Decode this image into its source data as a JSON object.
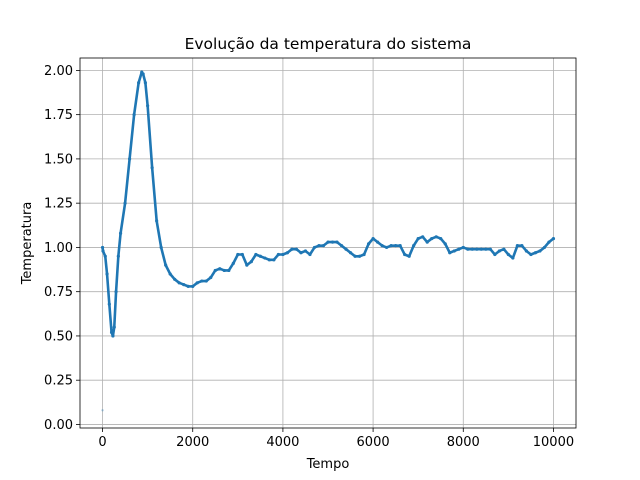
{
  "chart_data": {
    "type": "scatter",
    "title": "Evolução da temperatura do sistema",
    "xlabel": "Tempo",
    "ylabel": "Temperatura",
    "xlim": [
      -500,
      10500
    ],
    "ylim": [
      -0.02,
      2.07
    ],
    "grid": true,
    "xticks": [
      0,
      2000,
      4000,
      6000,
      8000,
      10000
    ],
    "xtick_labels": [
      "0",
      "2000",
      "4000",
      "6000",
      "8000",
      "10000"
    ],
    "yticks": [
      0.0,
      0.25,
      0.5,
      0.75,
      1.0,
      1.25,
      1.5,
      1.75,
      2.0
    ],
    "ytick_labels": [
      "0.00",
      "0.25",
      "0.50",
      "0.75",
      "1.00",
      "1.25",
      "1.50",
      "1.75",
      "2.00"
    ],
    "color": "#1f77b4",
    "series": [
      {
        "x": [
          0,
          10,
          60,
          100,
          150,
          200,
          230,
          260,
          300,
          350,
          400,
          500,
          600,
          700,
          800,
          870,
          900,
          950,
          1000,
          1100,
          1200,
          1300,
          1400,
          1500,
          1600,
          1700,
          1800,
          1900,
          2000,
          2100,
          2200,
          2300,
          2400,
          2500,
          2600,
          2700,
          2800,
          2900,
          3000,
          3100,
          3200,
          3300,
          3400,
          3500,
          3600,
          3700,
          3800,
          3900,
          4000,
          4100,
          4200,
          4300,
          4400,
          4500,
          4600,
          4700,
          4800,
          4900,
          5000,
          5100,
          5200,
          5300,
          5400,
          5500,
          5600,
          5700,
          5800,
          5900,
          6000,
          6100,
          6200,
          6300,
          6400,
          6500,
          6600,
          6700,
          6800,
          6900,
          7000,
          7100,
          7200,
          7300,
          7400,
          7500,
          7600,
          7700,
          7800,
          7900,
          8000,
          8100,
          8200,
          8300,
          8400,
          8500,
          8600,
          8700,
          8800,
          8900,
          9000,
          9100,
          9200,
          9300,
          9400,
          9500,
          9600,
          9700,
          9800,
          9900,
          10000
        ],
        "y": [
          1.0,
          0.98,
          0.95,
          0.85,
          0.68,
          0.52,
          0.5,
          0.55,
          0.75,
          0.95,
          1.08,
          1.25,
          1.5,
          1.75,
          1.93,
          1.99,
          1.98,
          1.93,
          1.8,
          1.45,
          1.15,
          1.0,
          0.9,
          0.85,
          0.82,
          0.8,
          0.79,
          0.78,
          0.78,
          0.8,
          0.81,
          0.81,
          0.83,
          0.87,
          0.88,
          0.87,
          0.87,
          0.91,
          0.96,
          0.96,
          0.9,
          0.92,
          0.96,
          0.95,
          0.94,
          0.93,
          0.93,
          0.96,
          0.96,
          0.97,
          0.99,
          0.99,
          0.97,
          0.98,
          0.96,
          1.0,
          1.01,
          1.01,
          1.03,
          1.03,
          1.03,
          1.01,
          0.99,
          0.97,
          0.95,
          0.95,
          0.96,
          1.02,
          1.05,
          1.03,
          1.01,
          1.0,
          1.01,
          1.01,
          1.01,
          0.96,
          0.95,
          1.01,
          1.05,
          1.06,
          1.03,
          1.05,
          1.06,
          1.05,
          1.02,
          0.97,
          0.98,
          0.99,
          1.0,
          0.99,
          0.99,
          0.99,
          0.99,
          0.99,
          0.99,
          0.96,
          0.98,
          0.99,
          0.96,
          0.94,
          1.01,
          1.01,
          0.98,
          0.96,
          0.97,
          0.98,
          1.0,
          1.03,
          1.05
        ]
      }
    ],
    "outliers": [
      {
        "x": 0,
        "y": 0.08
      }
    ]
  }
}
